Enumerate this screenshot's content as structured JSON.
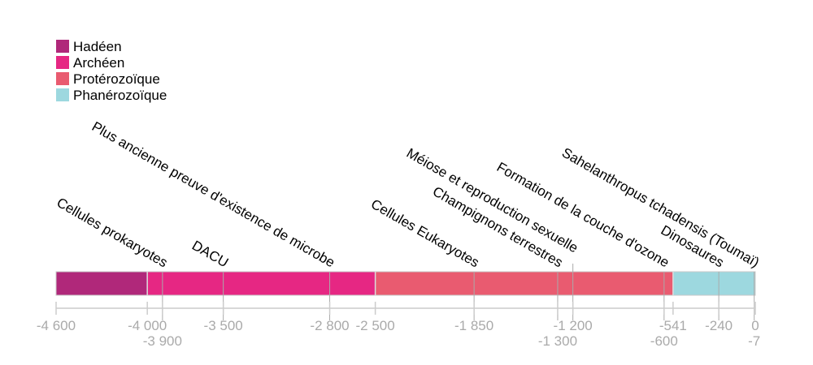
{
  "chart_data": {
    "type": "timeline",
    "xlim": [
      -4600,
      0
    ],
    "legend_position": "top-left",
    "eras": [
      {
        "name": "Hadéen",
        "start": -4600,
        "end": -4000,
        "color": "#b0287a"
      },
      {
        "name": "Archéen",
        "start": -4000,
        "end": -2500,
        "color": "#e62783"
      },
      {
        "name": "Protérozoïque",
        "start": -2500,
        "end": -541,
        "color": "#e95b70"
      },
      {
        "name": "Phanérozoïque",
        "start": -541,
        "end": 0,
        "color": "#9dd8df"
      }
    ],
    "events": [
      {
        "label": "Cellules prokaryotes",
        "x": -3900
      },
      {
        "label": "DACU",
        "x": -3500
      },
      {
        "label": "Plus ancienne preuve d'existence de microbe",
        "x": -2800
      },
      {
        "label": "Cellules Eukaryotes",
        "x": -1850
      },
      {
        "label": "Champignons terrestres",
        "x": -1300
      },
      {
        "label": "Méiose et reproduction sexuelle",
        "x": -1200
      },
      {
        "label": "Formation de la couche d'ozone",
        "x": -600
      },
      {
        "label": "Dinosaures",
        "x": -240
      },
      {
        "label": "Sahelanthropus tchadensis (Toumaï)",
        "x": -7
      }
    ],
    "ticks": [
      {
        "value": -4600,
        "label": "-4 600",
        "row": 0
      },
      {
        "value": -4000,
        "label": "-4 000",
        "row": 0
      },
      {
        "value": -3900,
        "label": "-3 900",
        "row": 1
      },
      {
        "value": -3500,
        "label": "-3 500",
        "row": 0
      },
      {
        "value": -2800,
        "label": "-2 800",
        "row": 0
      },
      {
        "value": -2500,
        "label": "-2 500",
        "row": 0
      },
      {
        "value": -1850,
        "label": "-1 850",
        "row": 0
      },
      {
        "value": -1300,
        "label": "-1 300",
        "row": 1
      },
      {
        "value": -1200,
        "label": "-1 200",
        "row": 0
      },
      {
        "value": -600,
        "label": "-600",
        "row": 1
      },
      {
        "value": -541,
        "label": "-541",
        "row": 0
      },
      {
        "value": -240,
        "label": "-240",
        "row": 0
      },
      {
        "value": -7,
        "label": "-7",
        "row": 1
      },
      {
        "value": 0,
        "label": "0",
        "row": 0
      }
    ]
  }
}
